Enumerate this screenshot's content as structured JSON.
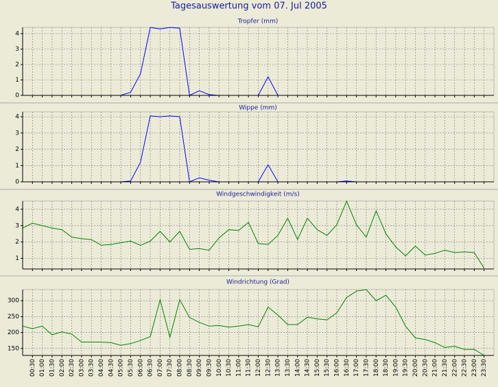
{
  "title": "Tagesauswertung vom 07. Jul 2005",
  "chart_data": [
    {
      "type": "line",
      "title": "Tropfer (mm)",
      "color": "#0000ff",
      "grid": true,
      "ylim": [
        0,
        4.4
      ],
      "yticks": [
        0,
        1,
        2,
        3,
        4
      ],
      "values": [
        0,
        0,
        0,
        0,
        0,
        0,
        0,
        0,
        0,
        0,
        0,
        0.2,
        1.4,
        4.4,
        4.3,
        4.4,
        4.35,
        0,
        0.3,
        0.05,
        0,
        0,
        0,
        0,
        0,
        1.2,
        0,
        0,
        0,
        0,
        0,
        0,
        0,
        0,
        0,
        0,
        0,
        0,
        0,
        0,
        0,
        0,
        0,
        0,
        0,
        0,
        0,
        0
      ]
    },
    {
      "type": "line",
      "title": "Wippe (mm)",
      "color": "#0000ff",
      "grid": true,
      "ylim": [
        0,
        4.3
      ],
      "yticks": [
        0,
        1,
        2,
        3,
        4
      ],
      "values": [
        0,
        0,
        0,
        0,
        0,
        0,
        0,
        0,
        0,
        0,
        0,
        0.05,
        1.2,
        4.05,
        4.0,
        4.05,
        4.0,
        0,
        0.25,
        0.1,
        0,
        0,
        0,
        0,
        0,
        1.05,
        0,
        0,
        0,
        0,
        0,
        0,
        0,
        0.05,
        0,
        0,
        0,
        0,
        0,
        0,
        0,
        0,
        0,
        0,
        0,
        0,
        0,
        0
      ]
    },
    {
      "type": "line",
      "title": "Windgeschwindigkeit (m/s)",
      "color": "#008000",
      "grid": true,
      "ylim": [
        0.35,
        4.5
      ],
      "yticks": [
        1,
        2,
        3,
        4
      ],
      "values": [
        2.85,
        3.15,
        3.0,
        2.85,
        2.75,
        2.3,
        2.2,
        2.15,
        1.8,
        1.85,
        1.95,
        2.05,
        1.8,
        2.05,
        2.65,
        2.0,
        2.65,
        1.55,
        1.6,
        1.5,
        2.25,
        2.75,
        2.7,
        3.2,
        1.9,
        1.85,
        2.4,
        3.45,
        2.15,
        3.45,
        2.75,
        2.4,
        3.05,
        4.5,
        3.05,
        2.3,
        3.9,
        2.5,
        1.7,
        1.15,
        1.75,
        1.2,
        1.3,
        1.5,
        1.35,
        1.4,
        1.35,
        0.4
      ]
    },
    {
      "type": "line",
      "title": "Windrichtung (Grad)",
      "color": "#008000",
      "grid": true,
      "ylim": [
        128,
        335
      ],
      "yticks": [
        150,
        200,
        250,
        300
      ],
      "categories": [
        null,
        "00:30",
        "01:00",
        "01:30",
        "02:00",
        "02:30",
        "03:00",
        "03:30",
        "04:00",
        "04:30",
        "05:00",
        "05:30",
        "06:00",
        "06:30",
        "07:00",
        "07:30",
        "08:00",
        "08:30",
        "09:00",
        "09:30",
        "10:00",
        "10:30",
        "11:00",
        "11:30",
        "12:00",
        "12:30",
        "13:00",
        "13:30",
        "14:00",
        "14:30",
        "15:00",
        "15:30",
        "16:00",
        "16:30",
        "17:00",
        "17:30",
        "18:00",
        "18:30",
        "19:00",
        "19:30",
        "20:00",
        "20:30",
        "21:00",
        "21:30",
        "22:00",
        "22:30",
        "23:00",
        "23:30"
      ],
      "values": [
        220,
        212,
        220,
        193,
        202,
        195,
        170,
        170,
        170,
        168,
        160,
        165,
        175,
        187,
        303,
        185,
        303,
        247,
        232,
        220,
        222,
        217,
        220,
        225,
        218,
        280,
        255,
        225,
        225,
        248,
        243,
        240,
        262,
        310,
        330,
        335,
        300,
        317,
        280,
        220,
        183,
        178,
        168,
        153,
        157,
        147,
        147,
        128
      ]
    }
  ]
}
